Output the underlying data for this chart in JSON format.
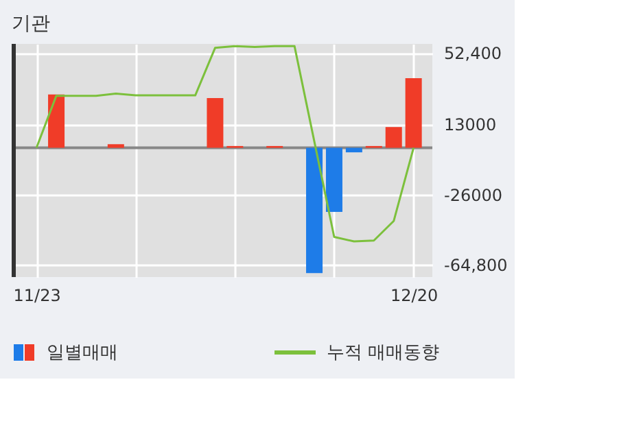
{
  "chart_data": {
    "type": "bar",
    "title": "기관",
    "categories": [
      "11/23",
      null,
      null,
      null,
      null,
      null,
      null,
      null,
      null,
      null,
      null,
      null,
      null,
      null,
      null,
      null,
      null,
      null,
      null,
      "12/20"
    ],
    "series": [
      {
        "name": "일별매매",
        "colors": [
          "#f03c28",
          "#f03c28",
          "#f03c28",
          "#f03c28",
          "#f03c28",
          "#f03c28",
          "#f03c28",
          "#f03c28",
          "#f03c28",
          "#f03c28",
          "#f03c28",
          "#f03c28",
          "#f03c28",
          "#f03c28",
          "#1e7ce8",
          "#1e7ce8",
          "#1e7ce8",
          "#f03c28",
          "#f03c28",
          "#f03c28"
        ],
        "values": [
          0,
          29500,
          0,
          0,
          2000,
          0,
          0,
          0,
          0,
          27500,
          1000,
          0,
          1000,
          0,
          -69300,
          -35500,
          -2500,
          1000,
          11500,
          38500
        ]
      },
      {
        "name": "누적 매매동향",
        "type": "line",
        "color": "#7cc03c",
        "values": [
          0,
          28800,
          28800,
          28800,
          30000,
          29000,
          29000,
          29000,
          29000,
          55300,
          56300,
          55800,
          56300,
          56300,
          3500,
          -49300,
          -51800,
          -51300,
          -40500,
          0
        ]
      }
    ],
    "ylim": [
      -71500,
      57500
    ],
    "yticks": [
      {
        "value": 52400,
        "label": "52,400"
      },
      13000,
      -26000,
      {
        "value": -64800,
        "label": "-64,800"
      }
    ],
    "ref_lines": [
      {
        "axis": "y",
        "value": 0,
        "color": "#888888"
      }
    ],
    "grid": true,
    "legend": "bottom"
  }
}
